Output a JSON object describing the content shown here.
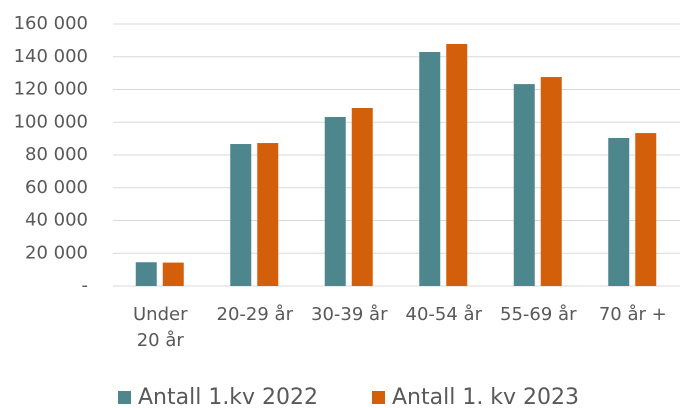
{
  "chart_data": {
    "type": "bar",
    "categories": [
      "Under 20 år",
      "20-29 år",
      "30-39 år",
      "40-54 år",
      "55-69 år",
      "70 år +"
    ],
    "series": [
      {
        "name": "Antall 1.kv 2022",
        "color": "#4e868e",
        "values": [
          14500,
          86700,
          103200,
          142900,
          123300,
          90400
        ]
      },
      {
        "name": "Antall 1. kv 2023",
        "color": "#d45f0a",
        "values": [
          14300,
          87300,
          108700,
          147800,
          127600,
          93400
        ]
      }
    ],
    "ylim": [
      0,
      160000
    ],
    "yticks": [
      {
        "value": 0,
        "label": "-"
      },
      {
        "value": 20000,
        "label": "20 000"
      },
      {
        "value": 40000,
        "label": "40 000"
      },
      {
        "value": 60000,
        "label": "60 000"
      },
      {
        "value": 80000,
        "label": "80 000"
      },
      {
        "value": 100000,
        "label": "100 000"
      },
      {
        "value": 120000,
        "label": "120 000"
      },
      {
        "value": 140000,
        "label": "140 000"
      },
      {
        "value": 160000,
        "label": "160 000"
      }
    ],
    "grid": true,
    "legend": "bottom"
  }
}
